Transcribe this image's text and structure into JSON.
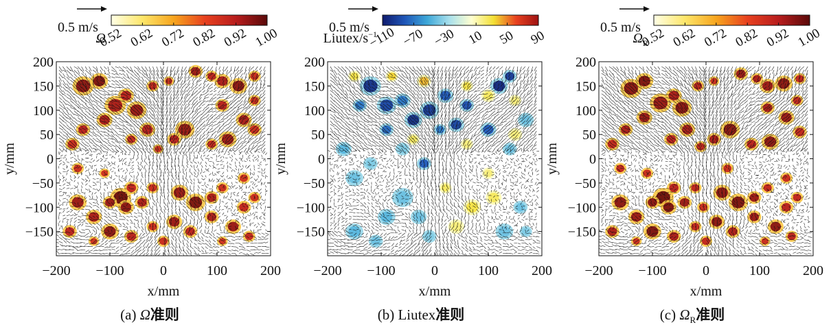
{
  "figure": {
    "panels": [
      {
        "id": "a",
        "caption_prefix": "(a) ",
        "caption_symbol": "Ω",
        "caption_suffix": "准则",
        "scale_label": "0.5 m/s",
        "colorbar_label": "Ω",
        "colorbar_label_sub": "",
        "colormap": "warm",
        "ticks": [
          "0.52",
          "0.62",
          "0.72",
          "0.82",
          "0.92",
          "1.00"
        ]
      },
      {
        "id": "b",
        "caption_prefix": "(b) ",
        "caption_symbol": "Liutex",
        "caption_suffix": "准则",
        "scale_label": "0.5 m/s",
        "colorbar_label": "Liutex/s",
        "colorbar_label_sup": "−1",
        "colorbar_label_sub": "",
        "colormap": "diverging",
        "ticks": [
          "−110",
          "−70",
          "−30",
          "10",
          "50",
          "90"
        ]
      },
      {
        "id": "c",
        "caption_prefix": "(c) ",
        "caption_symbol": "Ω",
        "caption_sub": "R",
        "caption_suffix": "准则",
        "scale_label": "0.5 m/s",
        "colorbar_label": "Ω",
        "colorbar_label_sub": "R",
        "colormap": "warm",
        "ticks": [
          "0.52",
          "0.62",
          "0.72",
          "0.82",
          "0.92",
          "1.00"
        ]
      }
    ],
    "colors": {
      "warm": [
        "#ffffe6",
        "#fde66a",
        "#f7a51e",
        "#e8411f",
        "#b81d1d",
        "#5a0a0a"
      ],
      "diverging": [
        "#0f1b6e",
        "#1f56b8",
        "#3da7d8",
        "#a8e0ec",
        "#ffffd0",
        "#f3df33",
        "#e8411f",
        "#9e1212"
      ]
    }
  },
  "chart_data": [
    {
      "type": "heatmap",
      "overlay": "vector field",
      "xlabel": "x/mm",
      "ylabel": "y/mm",
      "xlim": [
        -200,
        200
      ],
      "ylim": [
        -200,
        200
      ],
      "xticks": [
        "−200",
        "−100",
        "0",
        "100",
        "200"
      ],
      "yticks": [
        "200",
        "150",
        "100",
        "50",
        "0",
        "−50",
        "−100",
        "−150"
      ],
      "colorbar": {
        "label": "Ω",
        "range": [
          0.52,
          1.0
        ],
        "ticks": [
          0.52,
          0.62,
          0.72,
          0.82,
          0.92,
          1.0
        ]
      },
      "vector_scale": "0.5 m/s"
    },
    {
      "type": "heatmap",
      "overlay": "vector field",
      "xlabel": "x/mm",
      "ylabel": "y/mm",
      "xlim": [
        -200,
        200
      ],
      "ylim": [
        -200,
        200
      ],
      "xticks": [
        "−200",
        "−100",
        "0",
        "100",
        "200"
      ],
      "yticks": [
        "200",
        "150",
        "100",
        "50",
        "0",
        "−50",
        "−100",
        "−150"
      ],
      "colorbar": {
        "label": "Liutex/s−1",
        "range": [
          -110,
          90
        ],
        "ticks": [
          -110,
          -70,
          -30,
          10,
          50,
          90
        ]
      },
      "vector_scale": "0.5 m/s"
    },
    {
      "type": "heatmap",
      "overlay": "vector field",
      "xlabel": "x/mm",
      "ylabel": "y/mm",
      "xlim": [
        -200,
        200
      ],
      "ylim": [
        -200,
        200
      ],
      "xticks": [
        "−200",
        "−100",
        "0",
        "100",
        "200"
      ],
      "yticks": [
        "200",
        "150",
        "100",
        "50",
        "0",
        "−50",
        "−100",
        "−150"
      ],
      "colorbar": {
        "label": "ΩR",
        "range": [
          0.52,
          1.0
        ],
        "ticks": [
          0.52,
          0.62,
          0.72,
          0.82,
          0.92,
          1.0
        ]
      },
      "vector_scale": "0.5 m/s"
    }
  ],
  "blobs_a": [
    [
      -150,
      150,
      12,
      -0.85
    ],
    [
      -120,
      160,
      10,
      -0.9
    ],
    [
      -90,
      110,
      12,
      -0.75
    ],
    [
      -70,
      130,
      9,
      -0.7
    ],
    [
      -50,
      100,
      11,
      -0.8
    ],
    [
      -20,
      150,
      7,
      -0.65
    ],
    [
      10,
      160,
      6,
      -0.6
    ],
    [
      60,
      180,
      8,
      -0.8
    ],
    [
      90,
      170,
      7,
      -0.7
    ],
    [
      110,
      160,
      9,
      -0.75
    ],
    [
      140,
      150,
      10,
      -0.85
    ],
    [
      170,
      170,
      7,
      -0.6
    ],
    [
      110,
      110,
      8,
      -0.7
    ],
    [
      150,
      80,
      9,
      -0.75
    ],
    [
      170,
      60,
      8,
      -0.6
    ],
    [
      120,
      40,
      10,
      -0.8
    ],
    [
      90,
      30,
      7,
      -0.65
    ],
    [
      40,
      60,
      11,
      -0.8
    ],
    [
      20,
      40,
      8,
      -0.7
    ],
    [
      -10,
      20,
      6,
      -0.6
    ],
    [
      -30,
      60,
      9,
      -0.7
    ],
    [
      -60,
      40,
      7,
      -0.65
    ],
    [
      -110,
      80,
      9,
      -0.75
    ],
    [
      -150,
      60,
      8,
      -0.7
    ],
    [
      -170,
      30,
      8,
      -0.6
    ],
    [
      -160,
      -20,
      7,
      -0.6
    ],
    [
      -110,
      -30,
      6,
      -0.55
    ],
    [
      -60,
      -60,
      8,
      -0.65
    ],
    [
      -80,
      -80,
      12,
      -0.95
    ],
    [
      -70,
      -100,
      9,
      -0.85
    ],
    [
      -40,
      -90,
      8,
      -0.75
    ],
    [
      -100,
      -90,
      8,
      -0.8
    ],
    [
      30,
      -70,
      10,
      -0.8
    ],
    [
      60,
      -90,
      11,
      -0.9
    ],
    [
      90,
      -80,
      8,
      -0.75
    ],
    [
      110,
      -60,
      7,
      -0.6
    ],
    [
      150,
      -100,
      8,
      -0.65
    ],
    [
      170,
      -80,
      7,
      -0.6
    ],
    [
      -160,
      -90,
      10,
      -0.8
    ],
    [
      -130,
      -120,
      9,
      -0.75
    ],
    [
      -100,
      -150,
      10,
      -0.85
    ],
    [
      -60,
      -160,
      8,
      -0.7
    ],
    [
      -20,
      -140,
      7,
      -0.6
    ],
    [
      20,
      -130,
      9,
      -0.8
    ],
    [
      50,
      -150,
      8,
      -0.7
    ],
    [
      90,
      -120,
      8,
      -0.75
    ],
    [
      130,
      -140,
      9,
      -0.8
    ],
    [
      160,
      -160,
      7,
      -0.65
    ],
    [
      -175,
      -150,
      8,
      -0.7
    ],
    [
      0,
      -170,
      7,
      -0.6
    ],
    [
      110,
      -170,
      6,
      -0.55
    ],
    [
      -20,
      -60,
      7,
      -0.6
    ],
    [
      170,
      120,
      7,
      -0.6
    ],
    [
      150,
      -40,
      7,
      -0.55
    ],
    [
      -130,
      -170,
      6,
      -0.55
    ]
  ],
  "blobs_b": [
    [
      -120,
      150,
      12,
      -0.9
    ],
    [
      -90,
      110,
      11,
      -0.8
    ],
    [
      -60,
      120,
      9,
      -0.6
    ],
    [
      -40,
      80,
      10,
      -0.9
    ],
    [
      -10,
      100,
      11,
      -0.85
    ],
    [
      20,
      130,
      9,
      -0.7
    ],
    [
      40,
      70,
      9,
      -0.8
    ],
    [
      60,
      110,
      8,
      -0.75
    ],
    [
      120,
      150,
      10,
      -0.95
    ],
    [
      140,
      170,
      8,
      -0.85
    ],
    [
      100,
      60,
      9,
      -0.7
    ],
    [
      -140,
      110,
      8,
      -0.6
    ],
    [
      -90,
      60,
      8,
      -0.65
    ],
    [
      10,
      60,
      7,
      -0.6
    ],
    [
      -20,
      -10,
      8,
      -0.7
    ],
    [
      -150,
      170,
      7,
      0.4
    ],
    [
      -80,
      170,
      7,
      0.45
    ],
    [
      -20,
      160,
      8,
      0.5
    ],
    [
      60,
      150,
      7,
      0.4
    ],
    [
      100,
      130,
      8,
      0.35
    ],
    [
      150,
      120,
      7,
      0.3
    ],
    [
      170,
      80,
      9,
      -0.3
    ],
    [
      -170,
      20,
      9,
      -0.35
    ],
    [
      -150,
      -40,
      10,
      -0.3
    ],
    [
      -120,
      -10,
      8,
      -0.25
    ],
    [
      -60,
      -80,
      12,
      -0.3
    ],
    [
      -90,
      -120,
      10,
      -0.35
    ],
    [
      -30,
      -120,
      9,
      -0.3
    ],
    [
      -150,
      -150,
      10,
      -0.35
    ],
    [
      -110,
      -170,
      8,
      -0.3
    ],
    [
      -10,
      -160,
      8,
      -0.25
    ],
    [
      70,
      -100,
      10,
      0.4
    ],
    [
      110,
      -80,
      9,
      0.35
    ],
    [
      130,
      -150,
      10,
      -0.3
    ],
    [
      160,
      -100,
      8,
      -0.3
    ],
    [
      40,
      -140,
      9,
      0.3
    ],
    [
      20,
      -60,
      7,
      0.35
    ],
    [
      -60,
      20,
      8,
      -0.25
    ],
    [
      140,
      20,
      8,
      -0.3
    ],
    [
      100,
      -30,
      7,
      0.3
    ],
    [
      170,
      -150,
      7,
      -0.25
    ],
    [
      60,
      30,
      7,
      0.3
    ],
    [
      -40,
      40,
      7,
      0.35
    ],
    [
      150,
      50,
      8,
      0.3
    ]
  ],
  "blobs_c": [
    [
      -140,
      145,
      12,
      -0.85
    ],
    [
      -115,
      160,
      10,
      -0.9
    ],
    [
      -85,
      115,
      12,
      -0.8
    ],
    [
      -60,
      130,
      9,
      -0.75
    ],
    [
      -45,
      105,
      11,
      -0.85
    ],
    [
      -15,
      150,
      7,
      -0.7
    ],
    [
      15,
      160,
      6,
      -0.6
    ],
    [
      65,
      175,
      8,
      -0.8
    ],
    [
      95,
      165,
      7,
      -0.75
    ],
    [
      115,
      150,
      9,
      -0.8
    ],
    [
      145,
      155,
      10,
      -0.85
    ],
    [
      175,
      165,
      7,
      -0.65
    ],
    [
      115,
      105,
      8,
      -0.75
    ],
    [
      150,
      85,
      9,
      -0.8
    ],
    [
      175,
      55,
      8,
      -0.65
    ],
    [
      120,
      35,
      10,
      -0.85
    ],
    [
      85,
      30,
      8,
      -0.7
    ],
    [
      45,
      60,
      11,
      -0.85
    ],
    [
      15,
      40,
      8,
      -0.75
    ],
    [
      -10,
      25,
      7,
      -0.65
    ],
    [
      -35,
      60,
      9,
      -0.75
    ],
    [
      -65,
      40,
      8,
      -0.7
    ],
    [
      -115,
      85,
      9,
      -0.8
    ],
    [
      -150,
      60,
      8,
      -0.75
    ],
    [
      -175,
      30,
      8,
      -0.65
    ],
    [
      -160,
      -20,
      7,
      -0.65
    ],
    [
      -110,
      -30,
      7,
      -0.6
    ],
    [
      -60,
      -60,
      8,
      -0.7
    ],
    [
      -80,
      -80,
      12,
      -0.95
    ],
    [
      -70,
      -100,
      9,
      -0.9
    ],
    [
      -40,
      -90,
      8,
      -0.8
    ],
    [
      -100,
      -90,
      8,
      -0.85
    ],
    [
      30,
      -70,
      10,
      -0.85
    ],
    [
      60,
      -90,
      11,
      -0.9
    ],
    [
      90,
      -80,
      8,
      -0.8
    ],
    [
      115,
      -60,
      7,
      -0.65
    ],
    [
      150,
      -100,
      8,
      -0.7
    ],
    [
      170,
      -80,
      7,
      -0.65
    ],
    [
      -160,
      -90,
      10,
      -0.85
    ],
    [
      -130,
      -120,
      9,
      -0.8
    ],
    [
      -100,
      -150,
      10,
      -0.9
    ],
    [
      -60,
      -160,
      8,
      -0.75
    ],
    [
      -20,
      -140,
      7,
      -0.65
    ],
    [
      20,
      -130,
      9,
      -0.85
    ],
    [
      50,
      -150,
      8,
      -0.75
    ],
    [
      90,
      -120,
      8,
      -0.8
    ],
    [
      130,
      -140,
      9,
      -0.85
    ],
    [
      160,
      -160,
      7,
      -0.7
    ],
    [
      -175,
      -150,
      8,
      -0.75
    ],
    [
      0,
      -170,
      7,
      -0.65
    ],
    [
      110,
      -170,
      6,
      -0.6
    ],
    [
      -20,
      -60,
      7,
      -0.65
    ],
    [
      170,
      120,
      7,
      -0.65
    ],
    [
      150,
      -40,
      7,
      -0.6
    ],
    [
      -130,
      -170,
      6,
      -0.6
    ],
    [
      -5,
      -100,
      7,
      -0.6
    ],
    [
      40,
      -20,
      7,
      -0.6
    ]
  ]
}
